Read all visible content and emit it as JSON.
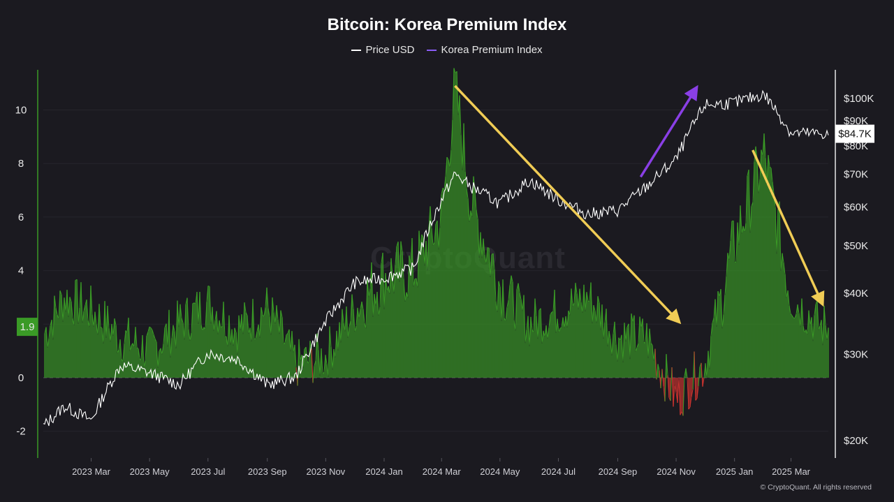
{
  "chart_data": {
    "type": "line",
    "title": "Bitcoin: Korea Premium Index",
    "legend": [
      {
        "label": "Price USD",
        "color": "#ffffff"
      },
      {
        "label": "Korea Premium Index",
        "color": "#8a5cf6"
      }
    ],
    "x_ticks": [
      "2023 Mar",
      "2023 May",
      "2023 Jul",
      "2023 Sep",
      "2023 Nov",
      "2024 Jan",
      "2024 Mar",
      "2024 May",
      "2024 Jul",
      "2024 Sep",
      "2024 Nov",
      "2025 Jan",
      "2025 Mar"
    ],
    "left_axis": {
      "ticks": [
        "-2",
        "0",
        "2",
        "4",
        "6",
        "8",
        "10"
      ],
      "ylim": [
        -3,
        11.5
      ],
      "current_label": "1.9"
    },
    "right_axis": {
      "scale": "log",
      "ticks": [
        "$20K",
        "$30K",
        "$40K",
        "$50K",
        "$60K",
        "$70K",
        "$80K",
        "$90K",
        "$100K"
      ],
      "current_label": "$84.7K"
    },
    "series": [
      {
        "name": "Korea Premium Index",
        "color_positive": "#3a9a26",
        "color_negative": "#c8332f",
        "x": [
          "2023-01-01",
          "2023-02-01",
          "2023-03-01",
          "2023-04-01",
          "2023-05-01",
          "2023-06-01",
          "2023-07-01",
          "2023-08-01",
          "2023-09-01",
          "2023-10-01",
          "2023-11-01",
          "2023-12-01",
          "2024-01-01",
          "2024-02-01",
          "2024-03-01",
          "2024-03-15",
          "2024-04-01",
          "2024-05-01",
          "2024-06-01",
          "2024-07-01",
          "2024-08-01",
          "2024-09-01",
          "2024-10-01",
          "2024-11-01",
          "2024-12-01",
          "2025-01-01",
          "2025-02-01",
          "2025-03-01",
          "2025-04-01"
        ],
        "y": [
          1.0,
          3.0,
          2.5,
          1.5,
          1.0,
          2.0,
          2.8,
          1.8,
          2.6,
          0.5,
          0.8,
          2.5,
          3.8,
          4.0,
          6.0,
          10.8,
          6.5,
          3.5,
          2.0,
          2.5,
          3.0,
          1.5,
          1.5,
          -0.8,
          0.5,
          5.0,
          8.3,
          3.0,
          1.9
        ]
      },
      {
        "name": "Price USD",
        "color": "#ffffff",
        "x": [
          "2023-01-01",
          "2023-02-01",
          "2023-03-01",
          "2023-04-01",
          "2023-05-01",
          "2023-06-01",
          "2023-07-01",
          "2023-08-01",
          "2023-09-01",
          "2023-10-01",
          "2023-11-01",
          "2023-12-01",
          "2024-01-01",
          "2024-02-01",
          "2024-03-01",
          "2024-03-15",
          "2024-04-01",
          "2024-05-01",
          "2024-06-01",
          "2024-07-01",
          "2024-08-01",
          "2024-09-01",
          "2024-10-01",
          "2024-11-01",
          "2024-12-01",
          "2025-01-01",
          "2025-02-01",
          "2025-03-01",
          "2025-04-01"
        ],
        "y": [
          20500,
          23500,
          22000,
          28500,
          27500,
          26000,
          30200,
          29300,
          26000,
          27000,
          35000,
          42000,
          43000,
          45000,
          62000,
          70000,
          66000,
          61000,
          68000,
          62000,
          58000,
          59000,
          66000,
          75000,
          97000,
          98000,
          102000,
          85000,
          84700
        ]
      }
    ],
    "annotations": [
      {
        "type": "arrow",
        "color": "#f0cc55",
        "from": [
          "2024-03-15",
          10.9
        ],
        "to": [
          "2024-11-01",
          2.2
        ]
      },
      {
        "type": "arrow",
        "color": "#8a3fe6",
        "from": [
          "2024-09-25",
          7.5
        ],
        "to": [
          "2024-11-20",
          10.7
        ]
      },
      {
        "type": "arrow",
        "color": "#f0cc55",
        "from": [
          "2025-01-20",
          8.5
        ],
        "to": [
          "2025-04-01",
          2.9
        ]
      }
    ],
    "zero_line": "dashed"
  },
  "watermark": "CryptoQuant",
  "copyright": "© CryptoQuant. All rights reserved"
}
